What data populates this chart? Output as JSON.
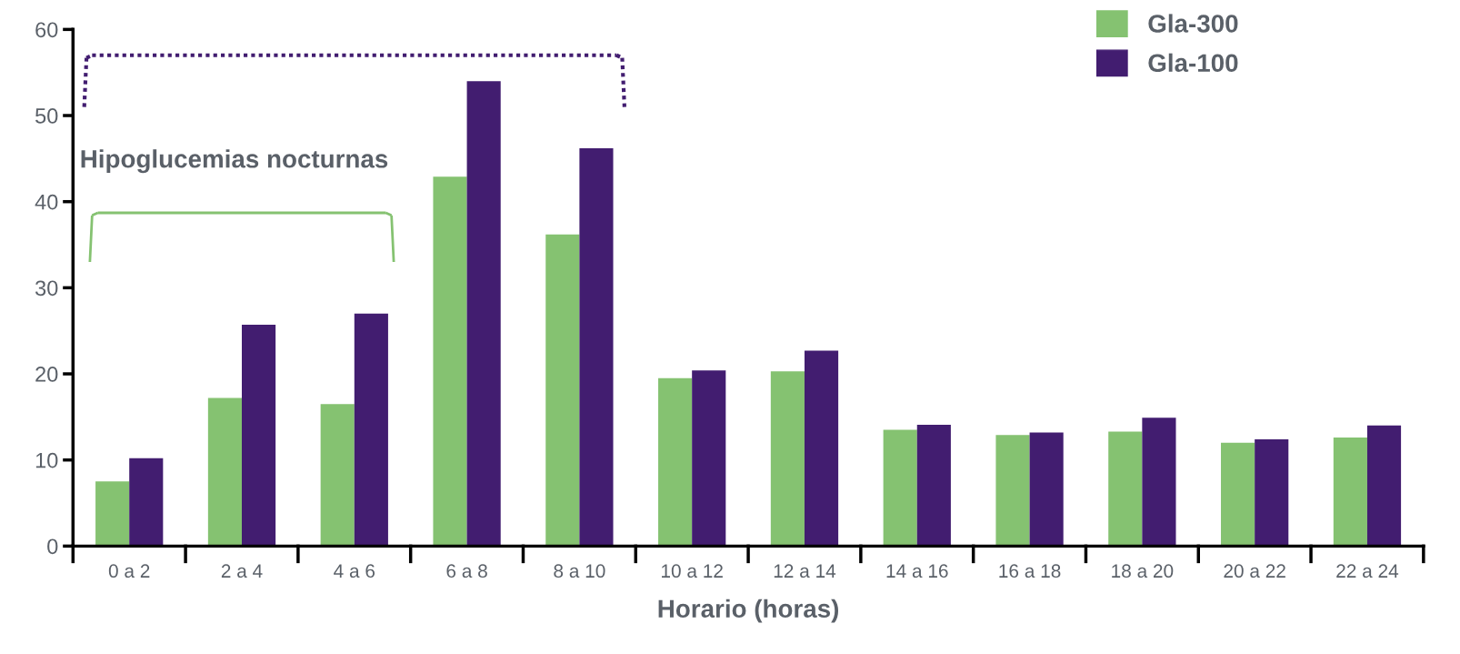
{
  "chart_data": {
    "type": "bar",
    "xlabel": "Horario (horas)",
    "categories": [
      "0 a 2",
      "2 a 4",
      "4 a 6",
      "6 a 8",
      "8 a 10",
      "10 a 12",
      "12 a 14",
      "14 a 16",
      "16 a 18",
      "18 a 20",
      "20 a 22",
      "22 a 24"
    ],
    "series": [
      {
        "name": "Gla-300",
        "color": "#85c271",
        "values": [
          7.5,
          17.2,
          16.5,
          42.9,
          36.2,
          19.5,
          20.3,
          13.5,
          12.9,
          13.3,
          12.0,
          12.6
        ]
      },
      {
        "name": "Gla-100",
        "color": "#421d70",
        "values": [
          10.2,
          25.7,
          27.0,
          54.0,
          46.2,
          20.4,
          22.7,
          14.1,
          13.2,
          14.9,
          12.4,
          14.0
        ]
      }
    ],
    "ylim": [
      0,
      60
    ],
    "yticks": [
      0,
      10,
      20,
      30,
      40,
      50,
      60
    ],
    "grid": false,
    "legend": "top right",
    "annotations": [
      "Hipoglucemias nocturnas"
    ]
  }
}
